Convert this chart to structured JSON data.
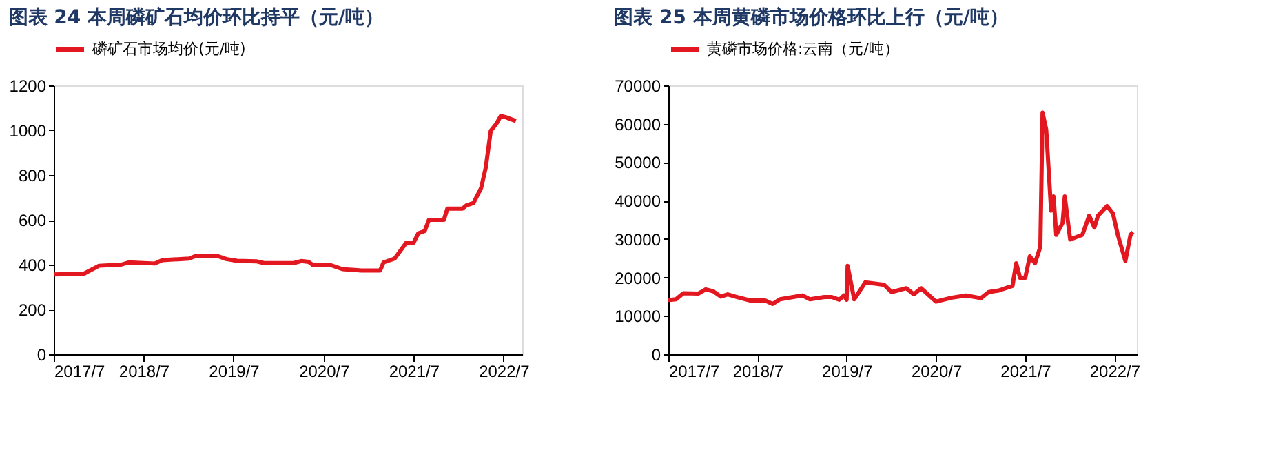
{
  "chart_data": [
    {
      "type": "line",
      "title": "图表 24  本周磷矿石均价环比持平（元/吨）",
      "x": [
        "2017-07-01",
        "2017-11-01",
        "2018-01-01",
        "2018-04-01",
        "2018-05-01",
        "2018-08-15",
        "2018-09-15",
        "2019-01-01",
        "2019-02-01",
        "2019-05-01",
        "2019-06-01",
        "2019-07-15",
        "2019-10-01",
        "2019-11-01",
        "2020-03-01",
        "2020-04-01",
        "2020-05-01",
        "2020-05-20",
        "2020-08-01",
        "2020-09-15",
        "2020-12-01",
        "2021-02-15",
        "2021-03-01",
        "2021-04-15",
        "2021-06-01",
        "2021-07-01",
        "2021-07-20",
        "2021-08-15",
        "2021-09-01",
        "2021-11-01",
        "2021-11-15",
        "2022-01-15",
        "2022-02-01",
        "2022-03-01",
        "2022-04-01",
        "2022-04-20",
        "2022-05-10",
        "2022-06-01",
        "2022-06-20",
        "2022-07-10",
        "2022-08-20"
      ],
      "series": [
        {
          "name": "磷矿石市场均价(元/吨)",
          "color": "#e3171f",
          "values": [
            356,
            360,
            395,
            400,
            410,
            405,
            420,
            427,
            440,
            437,
            425,
            417,
            415,
            407,
            407,
            416,
            412,
            397,
            397,
            380,
            374,
            374,
            410,
            427,
            498,
            498,
            540,
            550,
            600,
            600,
            650,
            650,
            665,
            675,
            742,
            834,
            997,
            1027,
            1064,
            1058,
            1041
          ]
        }
      ],
      "xlim": [
        "2017-07-01",
        "2022-09-15"
      ],
      "xticks": [
        {
          "value": "2017-07-01",
          "label": "2017/7"
        },
        {
          "value": "2018-07-01",
          "label": "2018/7"
        },
        {
          "value": "2019-07-01",
          "label": "2019/7"
        },
        {
          "value": "2020-07-01",
          "label": "2020/7"
        },
        {
          "value": "2021-07-01",
          "label": "2021/7"
        },
        {
          "value": "2022-07-01",
          "label": "2022/7"
        }
      ],
      "ylim": [
        0,
        1200
      ],
      "yticks": [
        0,
        200,
        400,
        600,
        800,
        1000,
        1200
      ],
      "grid": false,
      "legend": "top",
      "line_style": "solid",
      "marker": "none"
    },
    {
      "type": "line",
      "title": "图表 25  本周黄磷市场价格环比上行（元/吨）",
      "x": [
        "2017-07-01",
        "2017-08-01",
        "2017-09-01",
        "2017-11-01",
        "2017-12-01",
        "2018-01-01",
        "2018-02-01",
        "2018-03-01",
        "2018-04-01",
        "2018-06-01",
        "2018-08-01",
        "2018-09-01",
        "2018-10-01",
        "2019-01-01",
        "2019-02-01",
        "2019-04-01",
        "2019-05-01",
        "2019-06-01",
        "2019-06-20",
        "2019-07-01",
        "2019-07-05",
        "2019-08-01",
        "2019-09-15",
        "2019-12-01",
        "2020-01-01",
        "2020-03-01",
        "2020-04-01",
        "2020-05-01",
        "2020-07-01",
        "2020-09-01",
        "2020-11-01",
        "2021-01-01",
        "2021-02-01",
        "2021-03-15",
        "2021-04-20",
        "2021-05-10",
        "2021-05-25",
        "2021-06-10",
        "2021-07-01",
        "2021-07-20",
        "2021-08-10",
        "2021-09-01",
        "2021-09-10",
        "2021-09-25",
        "2021-10-15",
        "2021-10-25",
        "2021-11-05",
        "2021-12-01",
        "2021-12-10",
        "2022-01-01",
        "2022-02-20",
        "2022-03-20",
        "2022-04-10",
        "2022-04-25",
        "2022-06-01",
        "2022-06-25",
        "2022-07-15",
        "2022-08-15",
        "2022-09-05",
        "2022-09-15"
      ],
      "series": [
        {
          "name": "黄磷市场价格:云南（元/吨）",
          "color": "#e3171f",
          "values": [
            14100,
            14300,
            15900,
            15800,
            16900,
            16400,
            15000,
            15600,
            15000,
            14000,
            14000,
            13100,
            14300,
            15300,
            14300,
            14900,
            14900,
            14200,
            15300,
            14200,
            23000,
            14300,
            18700,
            18100,
            16200,
            17200,
            15600,
            17200,
            13700,
            14700,
            15300,
            14600,
            16200,
            16600,
            17400,
            17800,
            23700,
            19900,
            19900,
            25500,
            23700,
            28000,
            62900,
            58500,
            37400,
            41100,
            31100,
            34200,
            41100,
            29900,
            31100,
            36100,
            33000,
            36100,
            38600,
            36700,
            31100,
            24300,
            31100,
            31800
          ]
        }
      ],
      "xlim": [
        "2017-07-01",
        "2022-10-01"
      ],
      "xticks": [
        {
          "value": "2017-07-01",
          "label": "2017/7"
        },
        {
          "value": "2018-07-01",
          "label": "2018/7"
        },
        {
          "value": "2019-07-01",
          "label": "2019/7"
        },
        {
          "value": "2020-07-01",
          "label": "2020/7"
        },
        {
          "value": "2021-07-01",
          "label": "2021/7"
        },
        {
          "value": "2022-07-01",
          "label": "2022/7"
        }
      ],
      "ylim": [
        0,
        70000
      ],
      "yticks": [
        0,
        10000,
        20000,
        30000,
        40000,
        50000,
        60000,
        70000
      ],
      "grid": false,
      "legend": "top",
      "line_style": "solid",
      "marker": "none"
    }
  ]
}
